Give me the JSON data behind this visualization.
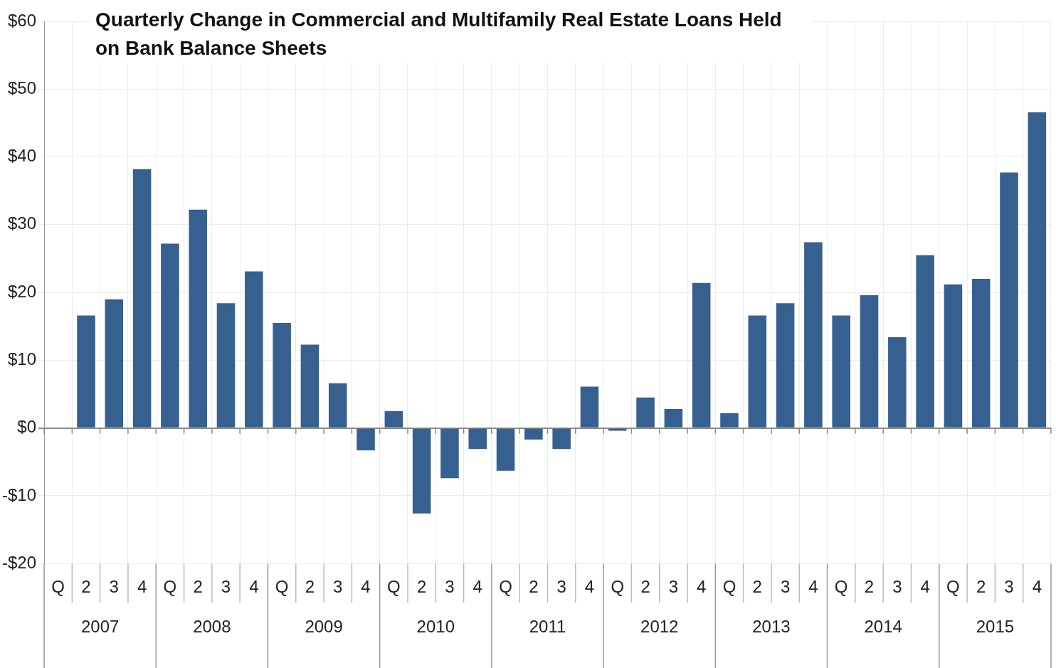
{
  "chart_data": {
    "type": "bar",
    "title": "Quarterly Change in Commercial and Multifamily Real Estate Loans Held on Bank Balance Sheets",
    "categories": [
      "Q",
      "2",
      "3",
      "4",
      "Q",
      "2",
      "3",
      "4",
      "Q",
      "2",
      "3",
      "4",
      "Q",
      "2",
      "3",
      "4",
      "Q",
      "2",
      "3",
      "4",
      "Q",
      "2",
      "3",
      "4",
      "Q",
      "2",
      "3",
      "4",
      "Q",
      "2",
      "3",
      "4",
      "Q",
      "2",
      "3",
      "4"
    ],
    "values": [
      null,
      16.6,
      19.0,
      38.2,
      27.2,
      32.2,
      18.4,
      23.1,
      15.5,
      12.3,
      6.6,
      -3.3,
      2.5,
      -12.6,
      -7.4,
      -3.1,
      -6.3,
      -1.7,
      -3.1,
      6.1,
      -0.4,
      4.5,
      2.8,
      21.4,
      2.2,
      16.6,
      18.4,
      27.4,
      16.6,
      19.6,
      13.4,
      25.5,
      21.2,
      22.0,
      37.7,
      46.6
    ],
    "color": "#36608f",
    "ylim": [
      -20,
      60
    ],
    "yticks": [
      {
        "value": -20,
        "label": "-$20"
      },
      {
        "value": -10,
        "label": "-$10"
      },
      {
        "value": 0,
        "label": "$0"
      },
      {
        "value": 10,
        "label": "$10"
      },
      {
        "value": 20,
        "label": "$20"
      },
      {
        "value": 30,
        "label": "$30"
      },
      {
        "value": 40,
        "label": "$40"
      },
      {
        "value": 50,
        "label": "$50"
      },
      {
        "value": 60,
        "label": "$60"
      }
    ],
    "grid": true,
    "annotations": [
      "2007",
      "2008",
      "2009",
      "2010",
      "2011",
      "2012",
      "2013",
      "2014",
      "2015"
    ]
  }
}
